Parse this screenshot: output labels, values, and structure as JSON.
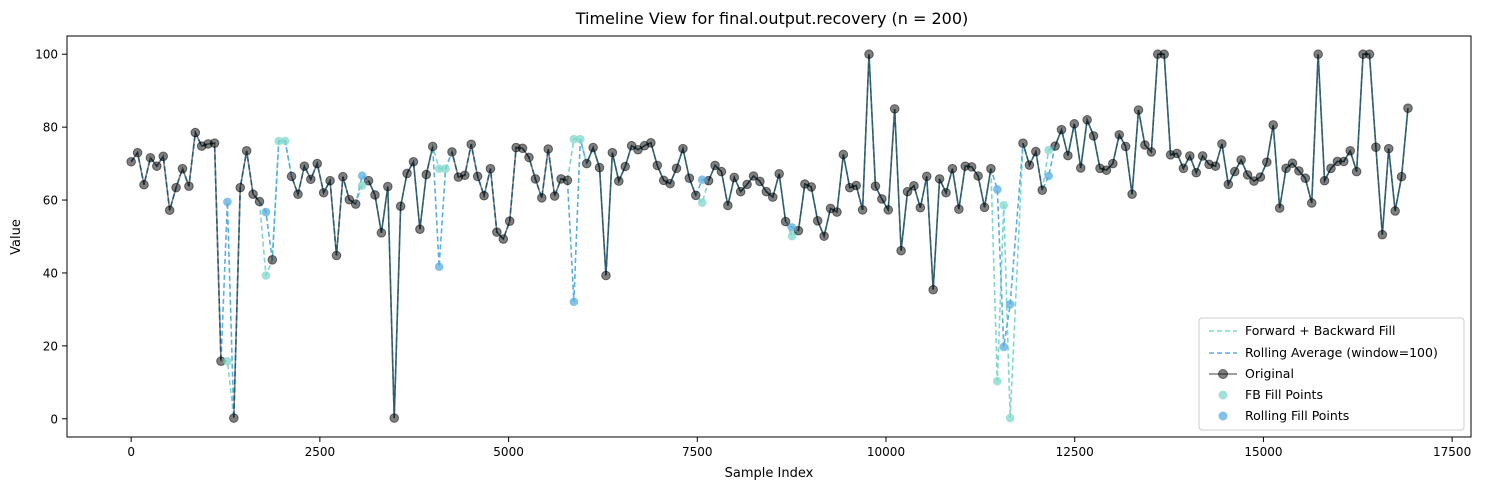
{
  "chart_data": {
    "type": "line",
    "title": "Timeline View for final.output.recovery (n = 200)",
    "xlabel": "Sample Index",
    "ylabel": "Value",
    "xlim": [
      -850,
      17750
    ],
    "ylim": [
      -5,
      105
    ],
    "x_ticks": [
      0,
      2500,
      5000,
      7500,
      10000,
      12500,
      15000,
      17500
    ],
    "y_ticks": [
      0,
      20,
      40,
      60,
      80,
      100
    ],
    "grid": false,
    "legend_position": "lower-right",
    "legend": [
      "Forward + Backward Fill",
      "Rolling Average (window=100)",
      "Original",
      "FB Fill Points",
      "Rolling Fill Points"
    ],
    "colors": {
      "original": "#000000",
      "fb_fill": "#7fd8c9",
      "rolling": "#5aaee0",
      "axis": "#000000"
    },
    "original": [
      [
        0,
        70.5
      ],
      [
        85,
        73
      ],
      [
        170,
        64.2
      ],
      [
        255,
        71.6
      ],
      [
        340,
        69.3
      ],
      [
        425,
        72
      ],
      [
        510,
        57.2
      ],
      [
        595,
        63.4
      ],
      [
        680,
        68.6
      ],
      [
        765,
        63.8
      ],
      [
        850,
        78.5
      ],
      [
        935,
        74.8
      ],
      [
        1020,
        75.4
      ],
      [
        1105,
        75.6
      ],
      [
        1190,
        15.8
      ],
      [
        1275,
        null
      ],
      [
        1360,
        0.2
      ],
      [
        1445,
        63.4
      ],
      [
        1530,
        73.5
      ],
      [
        1615,
        61.6
      ],
      [
        1700,
        59.6
      ],
      [
        1785,
        null
      ],
      [
        1870,
        43.6
      ],
      [
        1955,
        null
      ],
      [
        2040,
        null
      ],
      [
        2125,
        66.5
      ],
      [
        2210,
        61.6
      ],
      [
        2295,
        69.3
      ],
      [
        2380,
        65.7
      ],
      [
        2465,
        70
      ],
      [
        2550,
        62
      ],
      [
        2635,
        65.3
      ],
      [
        2720,
        44.8
      ],
      [
        2805,
        66.4
      ],
      [
        2890,
        60.1
      ],
      [
        2975,
        58.9
      ],
      [
        3060,
        null
      ],
      [
        3145,
        65.3
      ],
      [
        3230,
        61.4
      ],
      [
        3315,
        51
      ],
      [
        3400,
        63.7
      ],
      [
        3485,
        0.2
      ],
      [
        3570,
        58.3
      ],
      [
        3655,
        67.3
      ],
      [
        3740,
        70.5
      ],
      [
        3825,
        52
      ],
      [
        3910,
        67
      ],
      [
        3995,
        74.7
      ],
      [
        4080,
        null
      ],
      [
        4165,
        null
      ],
      [
        4250,
        73.2
      ],
      [
        4335,
        66.3
      ],
      [
        4420,
        66.8
      ],
      [
        4505,
        75.3
      ],
      [
        4590,
        66.5
      ],
      [
        4675,
        61.2
      ],
      [
        4760,
        68.6
      ],
      [
        4845,
        51.2
      ],
      [
        4930,
        49.3
      ],
      [
        5015,
        54.2
      ],
      [
        5100,
        74.4
      ],
      [
        5185,
        74.2
      ],
      [
        5270,
        71.7
      ],
      [
        5355,
        65.8
      ],
      [
        5440,
        60.6
      ],
      [
        5525,
        74
      ],
      [
        5610,
        61.1
      ],
      [
        5695,
        65.8
      ],
      [
        5780,
        65.4
      ],
      [
        5865,
        null
      ],
      [
        5950,
        null
      ],
      [
        6035,
        70
      ],
      [
        6120,
        74.4
      ],
      [
        6205,
        68.9
      ],
      [
        6290,
        39.3
      ],
      [
        6375,
        73
      ],
      [
        6460,
        65.2
      ],
      [
        6545,
        69.2
      ],
      [
        6630,
        74.9
      ],
      [
        6715,
        73.8
      ],
      [
        6800,
        74.9
      ],
      [
        6885,
        75.7
      ],
      [
        6970,
        69.5
      ],
      [
        7055,
        65.4
      ],
      [
        7140,
        64.5
      ],
      [
        7225,
        68.7
      ],
      [
        7310,
        74.1
      ],
      [
        7395,
        66
      ],
      [
        7480,
        61.3
      ],
      [
        7565,
        null
      ],
      [
        7650,
        65.3
      ],
      [
        7735,
        69.5
      ],
      [
        7820,
        67.8
      ],
      [
        7905,
        58.5
      ],
      [
        7990,
        66.2
      ],
      [
        8075,
        62.3
      ],
      [
        8160,
        64.3
      ],
      [
        8245,
        66.6
      ],
      [
        8330,
        65.1
      ],
      [
        8415,
        62.3
      ],
      [
        8500,
        60.8
      ],
      [
        8585,
        67.2
      ],
      [
        8670,
        54.1
      ],
      [
        8755,
        null
      ],
      [
        8840,
        51.6
      ],
      [
        8925,
        64.4
      ],
      [
        9010,
        63.6
      ],
      [
        9095,
        54.3
      ],
      [
        9180,
        50.1
      ],
      [
        9265,
        57.7
      ],
      [
        9350,
        56.7
      ],
      [
        9435,
        72.5
      ],
      [
        9520,
        63.4
      ],
      [
        9605,
        64
      ],
      [
        9690,
        57.3
      ],
      [
        9775,
        100
      ],
      [
        9860,
        63.8
      ],
      [
        9945,
        60.3
      ],
      [
        10030,
        57.3
      ],
      [
        10115,
        85
      ],
      [
        10200,
        46.1
      ],
      [
        10285,
        62.3
      ],
      [
        10370,
        63.9
      ],
      [
        10455,
        57.9
      ],
      [
        10540,
        66.5
      ],
      [
        10625,
        35.4
      ],
      [
        10710,
        65.8
      ],
      [
        10795,
        62
      ],
      [
        10880,
        68.6
      ],
      [
        10965,
        57.5
      ],
      [
        11050,
        69.3
      ],
      [
        11135,
        69.1
      ],
      [
        11220,
        66.6
      ],
      [
        11305,
        58
      ],
      [
        11390,
        68.6
      ],
      [
        11475,
        null
      ],
      [
        11560,
        null
      ],
      [
        11645,
        null
      ],
      [
        11730,
        null
      ],
      [
        11815,
        75.6
      ],
      [
        11900,
        69.6
      ],
      [
        11985,
        73.3
      ],
      [
        12070,
        62.7
      ],
      [
        12155,
        null
      ],
      [
        12240,
        74.8
      ],
      [
        12325,
        79.3
      ],
      [
        12410,
        72.2
      ],
      [
        12495,
        80.9
      ],
      [
        12580,
        68.8
      ],
      [
        12665,
        82
      ],
      [
        12750,
        77.6
      ],
      [
        12835,
        68.7
      ],
      [
        12920,
        68.2
      ],
      [
        13005,
        70
      ],
      [
        13090,
        77.9
      ],
      [
        13175,
        74.7
      ],
      [
        13260,
        61.6
      ],
      [
        13345,
        84.7
      ],
      [
        13430,
        75.1
      ],
      [
        13515,
        73.2
      ],
      [
        13600,
        100
      ],
      [
        13685,
        100
      ],
      [
        13770,
        72.4
      ],
      [
        13855,
        72.8
      ],
      [
        13940,
        68.7
      ],
      [
        14025,
        72.1
      ],
      [
        14110,
        67.5
      ],
      [
        14195,
        72.1
      ],
      [
        14280,
        69.8
      ],
      [
        14365,
        69.3
      ],
      [
        14450,
        75.4
      ],
      [
        14535,
        64.3
      ],
      [
        14620,
        67.8
      ],
      [
        14705,
        71
      ],
      [
        14790,
        66.9
      ],
      [
        14875,
        65.2
      ],
      [
        14960,
        66.3
      ],
      [
        15045,
        70.4
      ],
      [
        15130,
        80.6
      ],
      [
        15215,
        57.8
      ],
      [
        15300,
        68.7
      ],
      [
        15385,
        70.1
      ],
      [
        15470,
        68
      ],
      [
        15555,
        66
      ],
      [
        15640,
        59.2
      ],
      [
        15725,
        100
      ],
      [
        15810,
        65.3
      ],
      [
        15895,
        68.7
      ],
      [
        15980,
        70.6
      ],
      [
        16065,
        70.6
      ],
      [
        16150,
        73.5
      ],
      [
        16235,
        67.8
      ],
      [
        16320,
        100
      ],
      [
        16405,
        100
      ],
      [
        16490,
        74.5
      ],
      [
        16575,
        50.5
      ],
      [
        16660,
        74.1
      ],
      [
        16745,
        57
      ],
      [
        16830,
        66.4
      ],
      [
        16915,
        85.2
      ]
    ],
    "fb_fill_points": [
      [
        1275,
        15.8
      ],
      [
        1785,
        39.3
      ],
      [
        1955,
        76.2
      ],
      [
        2040,
        76.2
      ],
      [
        3060,
        64
      ],
      [
        4080,
        68.6
      ],
      [
        4165,
        68.6
      ],
      [
        5865,
        76.7
      ],
      [
        5950,
        76.7
      ],
      [
        7565,
        59.3
      ],
      [
        8755,
        50.1
      ],
      [
        11475,
        10.3
      ],
      [
        11560,
        58.6
      ],
      [
        11645,
        0.2
      ],
      [
        12155,
        73.7
      ]
    ],
    "rolling_fill_points": [
      [
        1275,
        59.5
      ],
      [
        1785,
        56.7
      ],
      [
        3060,
        66.7
      ],
      [
        4080,
        41.7
      ],
      [
        5865,
        32.1
      ],
      [
        7565,
        65.6
      ],
      [
        8755,
        52.5
      ],
      [
        11475,
        62.9
      ],
      [
        11560,
        19.7
      ],
      [
        11645,
        31.4
      ],
      [
        12155,
        66.6
      ]
    ]
  }
}
